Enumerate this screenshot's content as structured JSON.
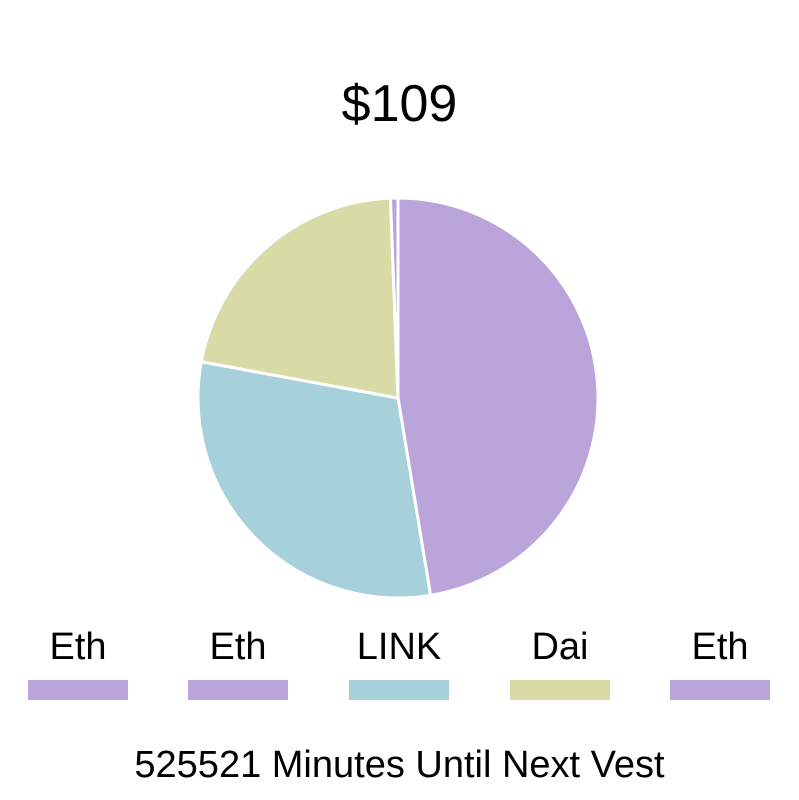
{
  "total_value": "$109",
  "countdown_text": "525521 Minutes Until Next Vest",
  "chart_data": {
    "type": "pie",
    "title": "$109",
    "legend_position": "bottom",
    "slices": [
      {
        "label": "Eth",
        "value": 0.474,
        "color": "#bba4da"
      },
      {
        "label": "Eth",
        "value": 0.0,
        "color": "#bba4da"
      },
      {
        "label": "LINK",
        "value": 0.305,
        "color": "#a6d1da"
      },
      {
        "label": "Dai",
        "value": 0.215,
        "color": "#d8dba5"
      },
      {
        "label": "Eth",
        "value": 0.006,
        "color": "#bba4da"
      }
    ]
  }
}
